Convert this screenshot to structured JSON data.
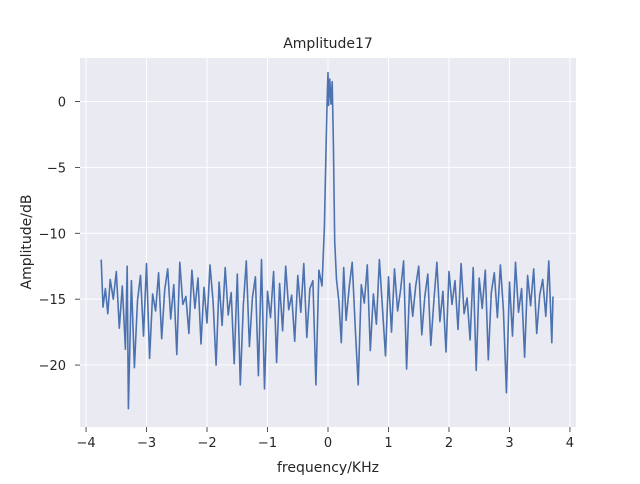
{
  "chart_data": {
    "type": "line",
    "title": "Amplitude17",
    "xlabel": "frequency/KHz",
    "ylabel": "Amplitude/dB",
    "xlim": [
      -4.1,
      4.1
    ],
    "ylim": [
      -24.7,
      3.3
    ],
    "xticks": [
      {
        "value": -4,
        "label": "−4"
      },
      {
        "value": -3,
        "label": "−3"
      },
      {
        "value": -2,
        "label": "−2"
      },
      {
        "value": -1,
        "label": "−1"
      },
      {
        "value": 0,
        "label": "0"
      },
      {
        "value": 1,
        "label": "1"
      },
      {
        "value": 2,
        "label": "2"
      },
      {
        "value": 3,
        "label": "3"
      },
      {
        "value": 4,
        "label": "4"
      }
    ],
    "yticks": [
      {
        "value": 0,
        "label": "0"
      },
      {
        "value": -5,
        "label": "−5"
      },
      {
        "value": -10,
        "label": "−10"
      },
      {
        "value": -15,
        "label": "−15"
      },
      {
        "value": -20,
        "label": "−20"
      }
    ],
    "grid": true,
    "line_color": "#4c72b0",
    "background_color": "#eaeaf2",
    "series": [
      {
        "x": [
          -3.75,
          -3.72,
          -3.68,
          -3.64,
          -3.6,
          -3.55,
          -3.5,
          -3.45,
          -3.4,
          -3.35,
          -3.32,
          -3.3,
          -3.25,
          -3.2,
          -3.15,
          -3.1,
          -3.05,
          -3.0,
          -2.95,
          -2.9,
          -2.85,
          -2.8,
          -2.75,
          -2.7,
          -2.65,
          -2.6,
          -2.55,
          -2.5,
          -2.45,
          -2.4,
          -2.35,
          -2.3,
          -2.25,
          -2.2,
          -2.15,
          -2.1,
          -2.05,
          -2.0,
          -1.95,
          -1.9,
          -1.85,
          -1.8,
          -1.75,
          -1.7,
          -1.65,
          -1.6,
          -1.55,
          -1.5,
          -1.45,
          -1.4,
          -1.35,
          -1.3,
          -1.25,
          -1.2,
          -1.15,
          -1.1,
          -1.05,
          -1.0,
          -0.95,
          -0.9,
          -0.85,
          -0.8,
          -0.75,
          -0.7,
          -0.65,
          -0.6,
          -0.55,
          -0.5,
          -0.45,
          -0.4,
          -0.35,
          -0.3,
          -0.25,
          -0.2,
          -0.15,
          -0.1,
          -0.06,
          -0.03,
          -0.01,
          0.0,
          0.01,
          0.03,
          0.05,
          0.07,
          0.09,
          0.11,
          0.14,
          0.18,
          0.22,
          0.26,
          0.3,
          0.35,
          0.4,
          0.45,
          0.5,
          0.55,
          0.6,
          0.65,
          0.7,
          0.75,
          0.8,
          0.85,
          0.9,
          0.95,
          1.0,
          1.05,
          1.1,
          1.15,
          1.2,
          1.25,
          1.3,
          1.35,
          1.4,
          1.45,
          1.5,
          1.55,
          1.6,
          1.65,
          1.7,
          1.75,
          1.8,
          1.85,
          1.9,
          1.95,
          2.0,
          2.05,
          2.1,
          2.15,
          2.2,
          2.25,
          2.3,
          2.35,
          2.4,
          2.45,
          2.5,
          2.55,
          2.6,
          2.65,
          2.7,
          2.75,
          2.8,
          2.85,
          2.9,
          2.95,
          3.0,
          3.05,
          3.1,
          3.15,
          3.2,
          3.25,
          3.3,
          3.35,
          3.4,
          3.45,
          3.5,
          3.55,
          3.6,
          3.65,
          3.7,
          3.72
        ],
        "y": [
          -12.0,
          -15.6,
          -14.2,
          -16.1,
          -13.5,
          -15.0,
          -12.9,
          -17.2,
          -14.0,
          -18.8,
          -12.5,
          -23.3,
          -13.6,
          -20.2,
          -15.1,
          -13.2,
          -17.8,
          -12.3,
          -19.5,
          -14.6,
          -15.9,
          -13.0,
          -18.0,
          -14.3,
          -12.7,
          -16.5,
          -13.9,
          -19.2,
          -12.2,
          -15.4,
          -14.8,
          -17.6,
          -12.8,
          -15.7,
          -13.4,
          -18.4,
          -14.1,
          -16.8,
          -12.4,
          -15.2,
          -20.0,
          -13.7,
          -17.0,
          -12.6,
          -16.2,
          -14.5,
          -19.9,
          -13.1,
          -21.5,
          -15.5,
          -12.1,
          -18.6,
          -14.9,
          -13.3,
          -20.8,
          -12.0,
          -21.8,
          -14.4,
          -16.4,
          -12.9,
          -19.8,
          -13.8,
          -17.4,
          -12.5,
          -15.8,
          -14.7,
          -18.2,
          -13.2,
          -16.0,
          -12.3,
          -17.9,
          -14.2,
          -13.6,
          -21.5,
          -12.8,
          -14.0,
          -9.5,
          -3.0,
          0.8,
          2.2,
          -0.3,
          1.7,
          -0.2,
          1.5,
          -3.2,
          -10.6,
          -13.5,
          -15.2,
          -18.3,
          -12.6,
          -16.6,
          -14.1,
          -12.2,
          -17.1,
          -21.5,
          -13.9,
          -15.3,
          -12.4,
          -18.9,
          -14.6,
          -16.9,
          -12.0,
          -15.6,
          -19.3,
          -13.3,
          -17.5,
          -12.7,
          -15.9,
          -14.3,
          -12.1,
          -20.3,
          -13.8,
          -16.3,
          -14.0,
          -12.5,
          -17.7,
          -14.8,
          -13.1,
          -18.5,
          -15.1,
          -12.2,
          -16.7,
          -14.4,
          -19.0,
          -12.9,
          -15.4,
          -13.6,
          -17.3,
          -12.3,
          -16.1,
          -14.9,
          -18.1,
          -12.6,
          -20.4,
          -13.4,
          -15.7,
          -12.8,
          -19.6,
          -14.5,
          -13.0,
          -16.4,
          -12.4,
          -15.8,
          -22.1,
          -13.7,
          -17.8,
          -12.2,
          -16.0,
          -14.2,
          -19.4,
          -13.2,
          -15.5,
          -12.7,
          -17.6,
          -14.7,
          -13.5,
          -16.3,
          -12.1,
          -18.3,
          -14.8
        ],
        "points": 0
      }
    ]
  }
}
